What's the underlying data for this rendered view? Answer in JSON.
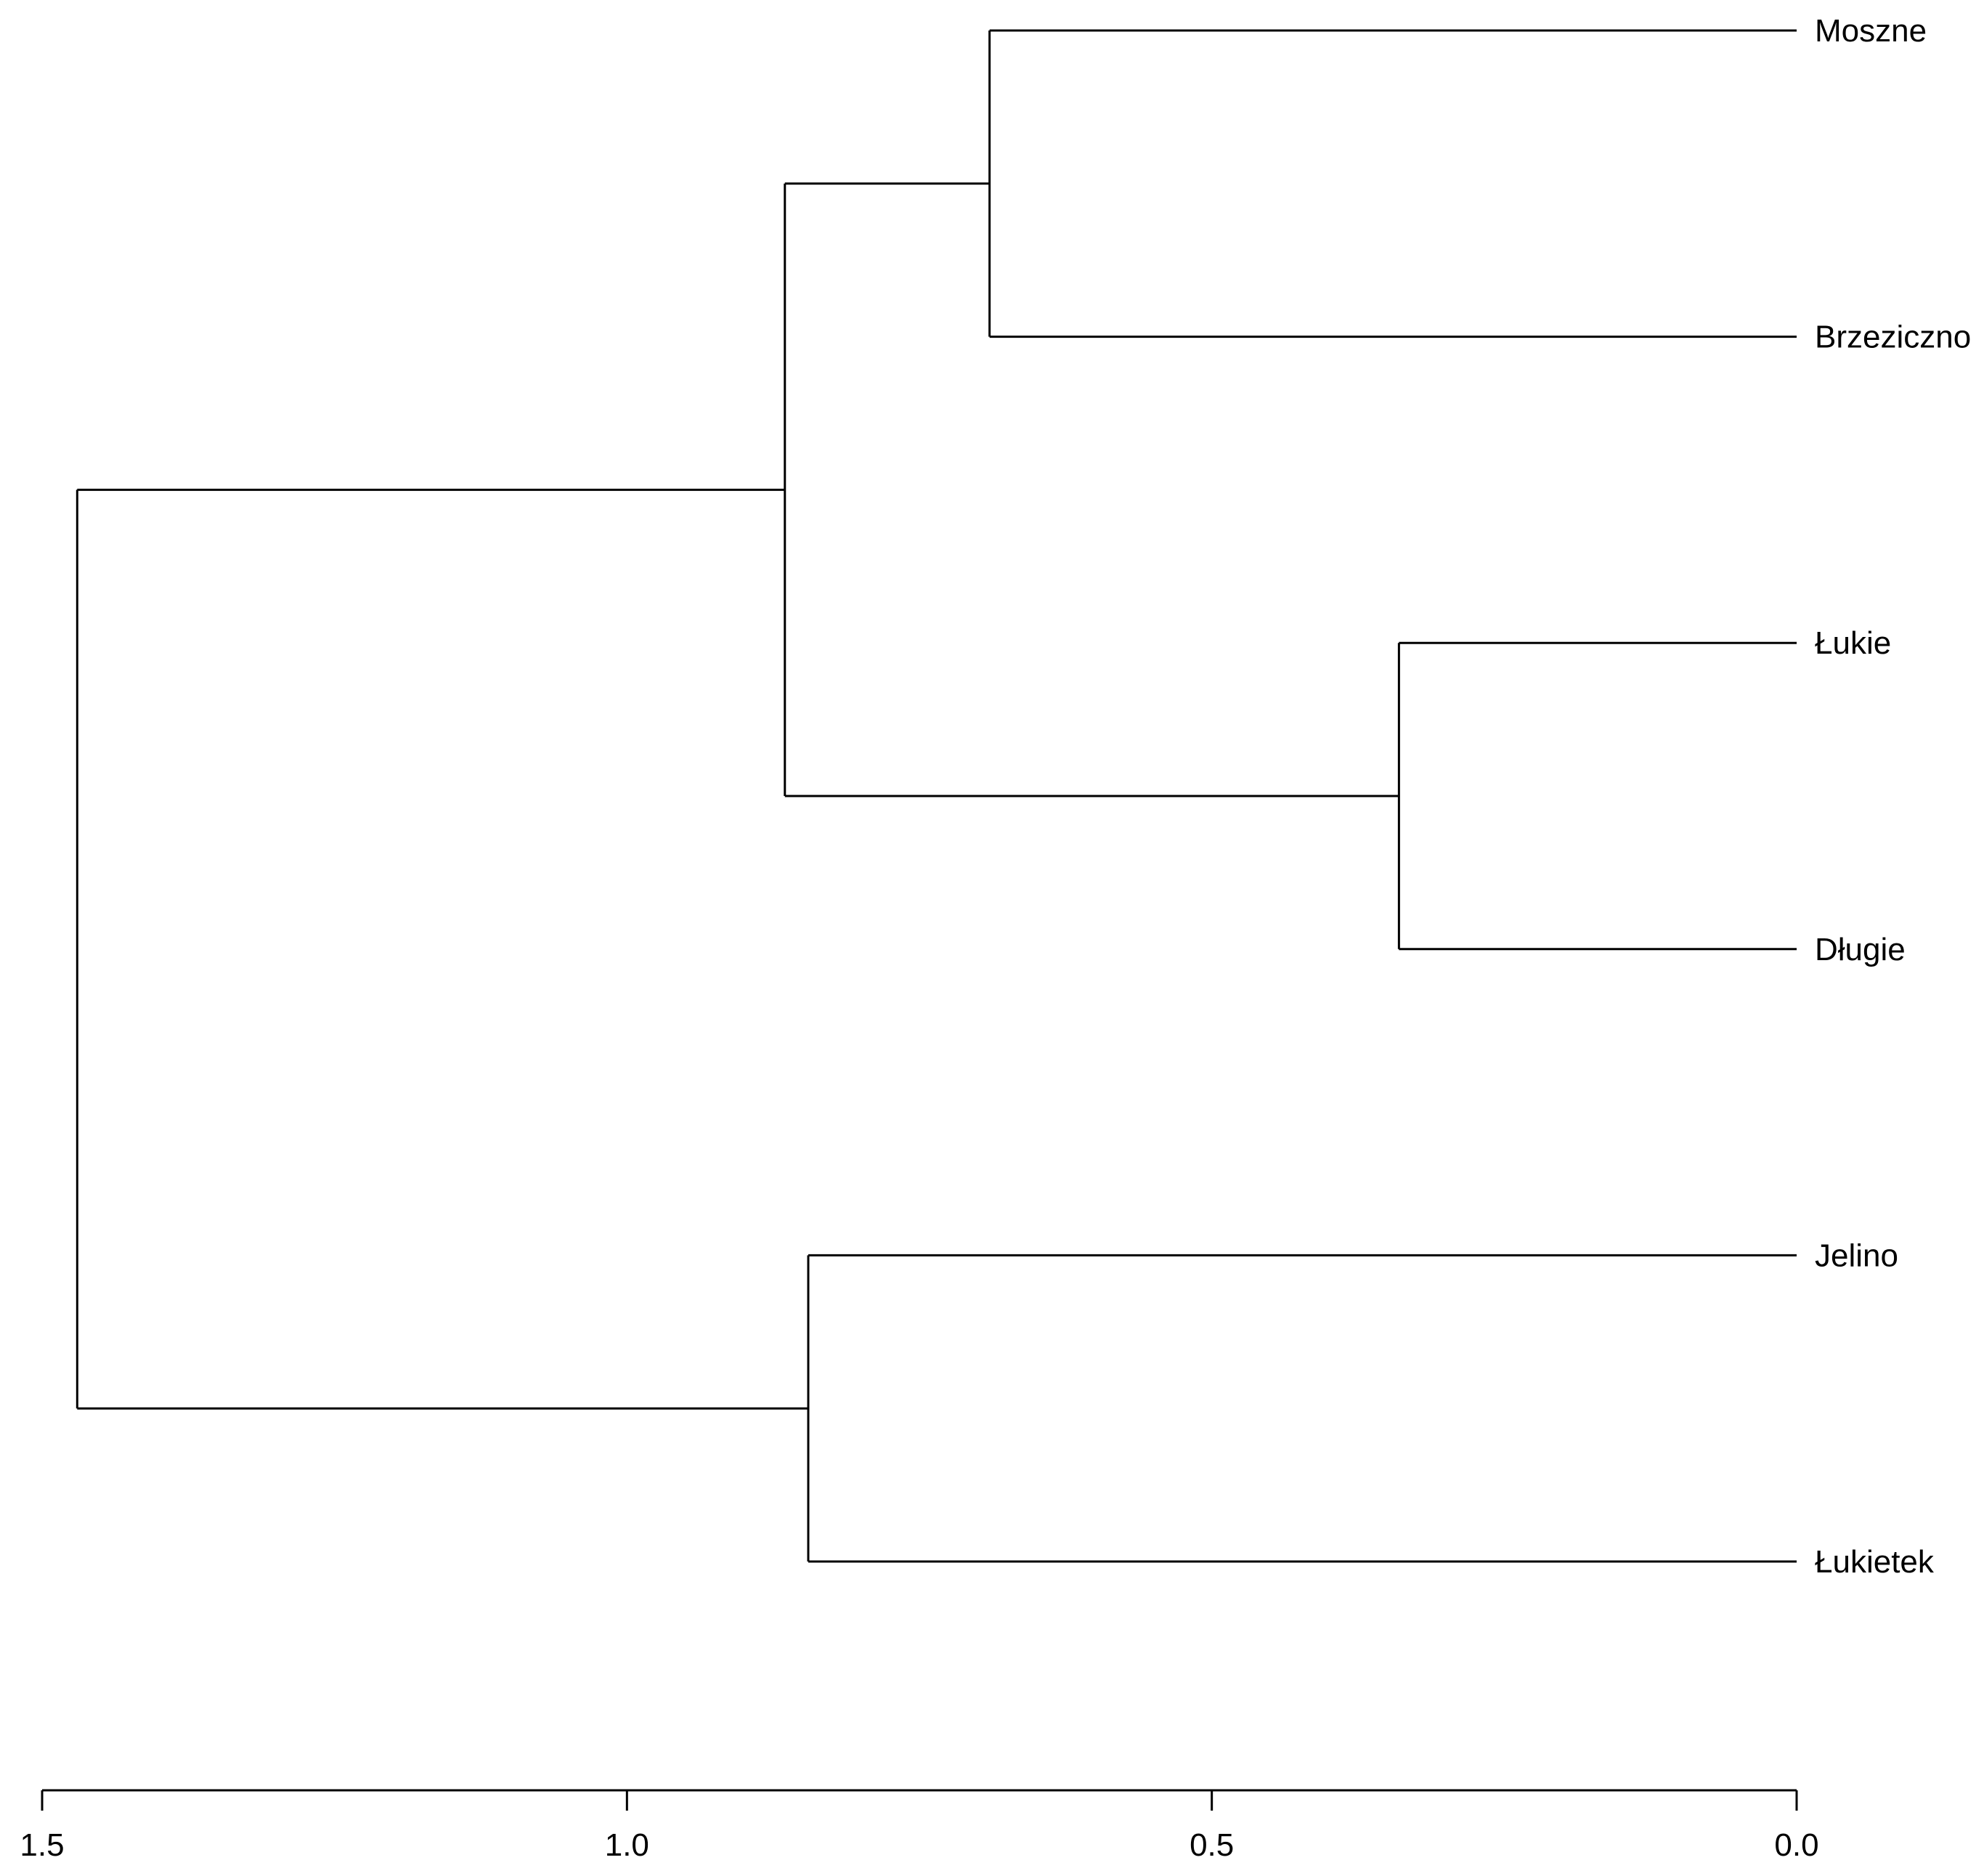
{
  "chart_data": {
    "type": "dendrogram",
    "orientation": "horizontal, root on left, leaves on right",
    "leaves": [
      "Moszne",
      "Brzeziczno",
      "Łukie",
      "Długie",
      "Jelino",
      "Łukietek"
    ],
    "merges": [
      {
        "id": "m1",
        "left": "Moszne",
        "right": "Brzeziczno",
        "height": 0.69
      },
      {
        "id": "m2",
        "left": "Łukie",
        "right": "Długie",
        "height": 0.34
      },
      {
        "id": "m3",
        "left": "m1",
        "right": "m2",
        "height": 0.865
      },
      {
        "id": "m4",
        "left": "Jelino",
        "right": "Łukietek",
        "height": 0.845
      },
      {
        "id": "m5",
        "left": "m3",
        "right": "m4",
        "height": 1.47
      }
    ],
    "xaxis": {
      "ticks": [
        1.5,
        1.0,
        0.5,
        0.0
      ],
      "tick_labels": [
        "1.5",
        "1.0",
        "0.5",
        "0.0"
      ],
      "range": [
        1.5,
        0.0
      ],
      "reversed": true
    },
    "grid": false,
    "line_color": "#000000"
  }
}
